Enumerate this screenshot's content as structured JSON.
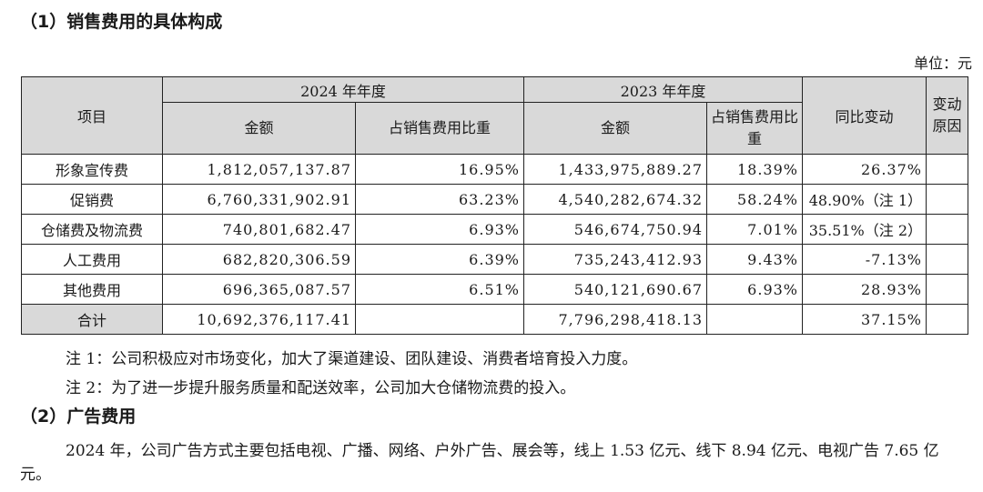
{
  "section1_title": "（1）销售费用的具体构成",
  "unit": "单位：元",
  "table": {
    "col_item": "项目",
    "year2024": "2024 年年度",
    "year2023": "2023 年年度",
    "col_yoy": "同比变动",
    "col_reason": "变动原因",
    "col_amount": "金额",
    "col_ratio_2024": "占销售费用比重",
    "col_ratio_2023": "占销售费用比重",
    "rows": [
      {
        "item": "形象宣传费",
        "amt2024": "1,812,057,137.87",
        "r2024": "16.95%",
        "amt2023": "1,433,975,889.27",
        "r2023": "18.39%",
        "yoy": "26.37%",
        "reason": ""
      },
      {
        "item": "促销费",
        "amt2024": "6,760,331,902.91",
        "r2024": "63.23%",
        "amt2023": "4,540,282,674.32",
        "r2023": "58.24%",
        "yoy": "48.90%（注 1）",
        "reason": ""
      },
      {
        "item": "仓储费及物流费",
        "amt2024": "740,801,682.47",
        "r2024": "6.93%",
        "amt2023": "546,674,750.94",
        "r2023": "7.01%",
        "yoy": "35.51%（注 2）",
        "reason": ""
      },
      {
        "item": "人工费用",
        "amt2024": "682,820,306.59",
        "r2024": "6.39%",
        "amt2023": "735,243,412.93",
        "r2023": "9.43%",
        "yoy": "-7.13%",
        "reason": ""
      },
      {
        "item": "其他费用",
        "amt2024": "696,365,087.57",
        "r2024": "6.51%",
        "amt2023": "540,121,690.67",
        "r2023": "6.93%",
        "yoy": "28.93%",
        "reason": ""
      }
    ],
    "total": {
      "item": "合计",
      "amt2024": "10,692,376,117.41",
      "r2024": "",
      "amt2023": "7,796,298,418.13",
      "r2023": "",
      "yoy": "37.15%",
      "reason": ""
    }
  },
  "note1": "注 1：公司积极应对市场变化，加大了渠道建设、团队建设、消费者培育投入力度。",
  "note2": "注 2：为了进一步提升服务质量和配送效率，公司加大仓储物流费的投入。",
  "section2_title": "（2）广告费用",
  "paragraph": "2024 年，公司广告方式主要包括电视、广播、网络、户外广告、展会等，线上 1.53 亿元、线下 8.94 亿元、电视广告 7.65 亿元。"
}
